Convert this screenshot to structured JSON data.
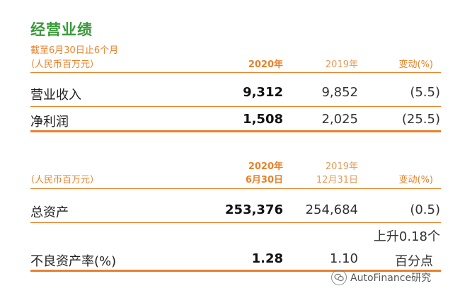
{
  "title": "经营业绩",
  "subtitle": "截至6月30日止6个月",
  "table1": {
    "unit_label": "（人民币百万元）",
    "col_2020": "2020年",
    "col_2019": "2019年",
    "col_change": "变动(%)",
    "rows": [
      {
        "label": "营业收入",
        "v2020": "9,312",
        "v2019": "9,852",
        "change": "(5.5)"
      },
      {
        "label": "净利润",
        "v2020": "1,508",
        "v2019": "2,025",
        "change": "(25.5)"
      }
    ]
  },
  "table2": {
    "unit_label": "（人民币百万元）",
    "col_2020_line1": "2020年",
    "col_2020_line2": "6月30日",
    "col_2019_line1": "2019年",
    "col_2019_line2": "12月31日",
    "col_change": "变动(%)",
    "rows": [
      {
        "label": "总资产",
        "v2020": "253,376",
        "v2019": "254,684",
        "change": "(0.5)"
      },
      {
        "label": "不良资产率(%)",
        "v2020": "1.28",
        "v2019": "1.10",
        "change_line1": "上升0.18个",
        "change_line2": "百分点"
      }
    ]
  },
  "watermark": {
    "icon": "wechat-icon",
    "text": "AutoFinance研究"
  },
  "colors": {
    "title": "#3a9a3a",
    "accent": "#e8822a"
  }
}
